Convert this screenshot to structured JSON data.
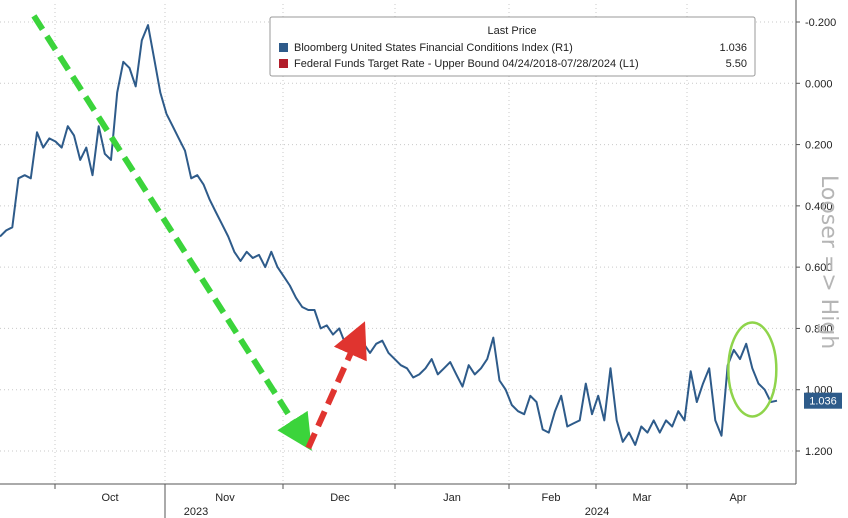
{
  "chart_data": {
    "type": "line",
    "legend": {
      "header": "Last Price",
      "placement": "top-right",
      "entries": [
        {
          "label": "Bloomberg United States Financial Conditions Index (R1)",
          "last": "1.036",
          "color": "#2e5b8a"
        },
        {
          "label": "Federal Funds Target Rate - Upper Bound 04/24/2018-07/28/2024  (L1)",
          "last": "5.50",
          "color": "#b21d2a"
        }
      ]
    },
    "y_axis": {
      "inverted": true,
      "range": [
        -0.3,
        1.35
      ],
      "ticks": [
        -0.2,
        0.0,
        0.2,
        0.4,
        0.6,
        0.8,
        1.0,
        1.2
      ],
      "tick_labels": [
        "-0.200",
        "0.000",
        "0.200",
        "0.400",
        "0.600",
        "0.800",
        "1.000",
        "1.200"
      ],
      "side_annotation": "Looser  =>  High"
    },
    "x_axis": {
      "months": [
        "Oct",
        "Nov",
        "Dec",
        "Jan",
        "Feb",
        "Mar",
        "Apr"
      ],
      "years": [
        "2023",
        "2024"
      ]
    },
    "last_value_badge": "1.036",
    "grid": true,
    "series": [
      {
        "name": "Bloomberg United States Financial Conditions Index",
        "color": "#2e5b8a",
        "points": [
          [
            0,
            0.5
          ],
          [
            1,
            0.48
          ],
          [
            2,
            0.47
          ],
          [
            3,
            0.31
          ],
          [
            4,
            0.3
          ],
          [
            5,
            0.31
          ],
          [
            6,
            0.16
          ],
          [
            7,
            0.21
          ],
          [
            8,
            0.18
          ],
          [
            9,
            0.19
          ],
          [
            10,
            0.21
          ],
          [
            11,
            0.14
          ],
          [
            12,
            0.17
          ],
          [
            13,
            0.25
          ],
          [
            14,
            0.21
          ],
          [
            15,
            0.3
          ],
          [
            16,
            0.14
          ],
          [
            17,
            0.23
          ],
          [
            18,
            0.25
          ],
          [
            19,
            0.03
          ],
          [
            20,
            -0.07
          ],
          [
            21,
            -0.05
          ],
          [
            22,
            0.01
          ],
          [
            23,
            -0.14
          ],
          [
            24,
            -0.19
          ],
          [
            25,
            -0.08
          ],
          [
            26,
            0.03
          ],
          [
            27,
            0.1
          ],
          [
            28,
            0.14
          ],
          [
            29,
            0.18
          ],
          [
            30,
            0.22
          ],
          [
            31,
            0.31
          ],
          [
            32,
            0.3
          ],
          [
            33,
            0.33
          ],
          [
            34,
            0.38
          ],
          [
            35,
            0.42
          ],
          [
            36,
            0.46
          ],
          [
            37,
            0.5
          ],
          [
            38,
            0.55
          ],
          [
            39,
            0.58
          ],
          [
            40,
            0.55
          ],
          [
            41,
            0.57
          ],
          [
            42,
            0.56
          ],
          [
            43,
            0.6
          ],
          [
            44,
            0.55
          ],
          [
            45,
            0.6
          ],
          [
            46,
            0.63
          ],
          [
            47,
            0.66
          ],
          [
            48,
            0.7
          ],
          [
            49,
            0.73
          ],
          [
            50,
            0.74
          ],
          [
            51,
            0.74
          ],
          [
            52,
            0.8
          ],
          [
            53,
            0.79
          ],
          [
            54,
            0.82
          ],
          [
            55,
            0.8
          ],
          [
            56,
            0.85
          ],
          [
            57,
            0.86
          ],
          [
            58,
            0.84
          ],
          [
            59,
            0.85
          ],
          [
            60,
            0.88
          ],
          [
            61,
            0.85
          ],
          [
            62,
            0.84
          ],
          [
            63,
            0.88
          ],
          [
            64,
            0.9
          ],
          [
            65,
            0.92
          ],
          [
            66,
            0.93
          ],
          [
            67,
            0.96
          ],
          [
            68,
            0.95
          ],
          [
            69,
            0.93
          ],
          [
            70,
            0.9
          ],
          [
            71,
            0.95
          ],
          [
            72,
            0.93
          ],
          [
            73,
            0.91
          ],
          [
            74,
            0.95
          ],
          [
            75,
            0.99
          ],
          [
            76,
            0.92
          ],
          [
            77,
            0.95
          ],
          [
            78,
            0.93
          ],
          [
            79,
            0.9
          ],
          [
            80,
            0.83
          ],
          [
            81,
            0.97
          ],
          [
            82,
            1.0
          ],
          [
            83,
            1.05
          ],
          [
            84,
            1.07
          ],
          [
            85,
            1.08
          ],
          [
            86,
            1.02
          ],
          [
            87,
            1.04
          ],
          [
            88,
            1.13
          ],
          [
            89,
            1.14
          ],
          [
            90,
            1.07
          ],
          [
            91,
            1.02
          ],
          [
            92,
            1.12
          ],
          [
            93,
            1.11
          ],
          [
            94,
            1.1
          ],
          [
            95,
            0.98
          ],
          [
            96,
            1.08
          ],
          [
            97,
            1.02
          ],
          [
            98,
            1.1
          ],
          [
            99,
            0.93
          ],
          [
            100,
            1.1
          ],
          [
            101,
            1.17
          ],
          [
            102,
            1.14
          ],
          [
            103,
            1.18
          ],
          [
            104,
            1.12
          ],
          [
            105,
            1.14
          ],
          [
            106,
            1.1
          ],
          [
            107,
            1.14
          ],
          [
            108,
            1.1
          ],
          [
            109,
            1.12
          ],
          [
            110,
            1.07
          ],
          [
            111,
            1.1
          ],
          [
            112,
            0.94
          ],
          [
            113,
            1.04
          ],
          [
            114,
            0.98
          ],
          [
            115,
            0.93
          ],
          [
            116,
            1.1
          ],
          [
            117,
            1.15
          ],
          [
            118,
            0.92
          ],
          [
            119,
            0.87
          ],
          [
            120,
            0.9
          ],
          [
            121,
            0.85
          ],
          [
            122,
            0.93
          ],
          [
            123,
            0.98
          ],
          [
            124,
            1.0
          ],
          [
            125,
            1.04
          ],
          [
            126,
            1.036
          ]
        ]
      }
    ],
    "annotations": [
      {
        "kind": "dashed-arrow",
        "color": "#3bd43b",
        "from": [
          5.5,
          -0.22
        ],
        "to": [
          49,
          1.15
        ]
      },
      {
        "kind": "dashed-arrow",
        "color": "#e0342f",
        "from": [
          50,
          1.19
        ],
        "to": [
          58,
          0.83
        ]
      },
      {
        "kind": "ellipse",
        "color": "#8fd44b",
        "center": [
          59.5,
          0.96
        ],
        "radius_x": 2,
        "radius_y": 0.2
      }
    ]
  }
}
